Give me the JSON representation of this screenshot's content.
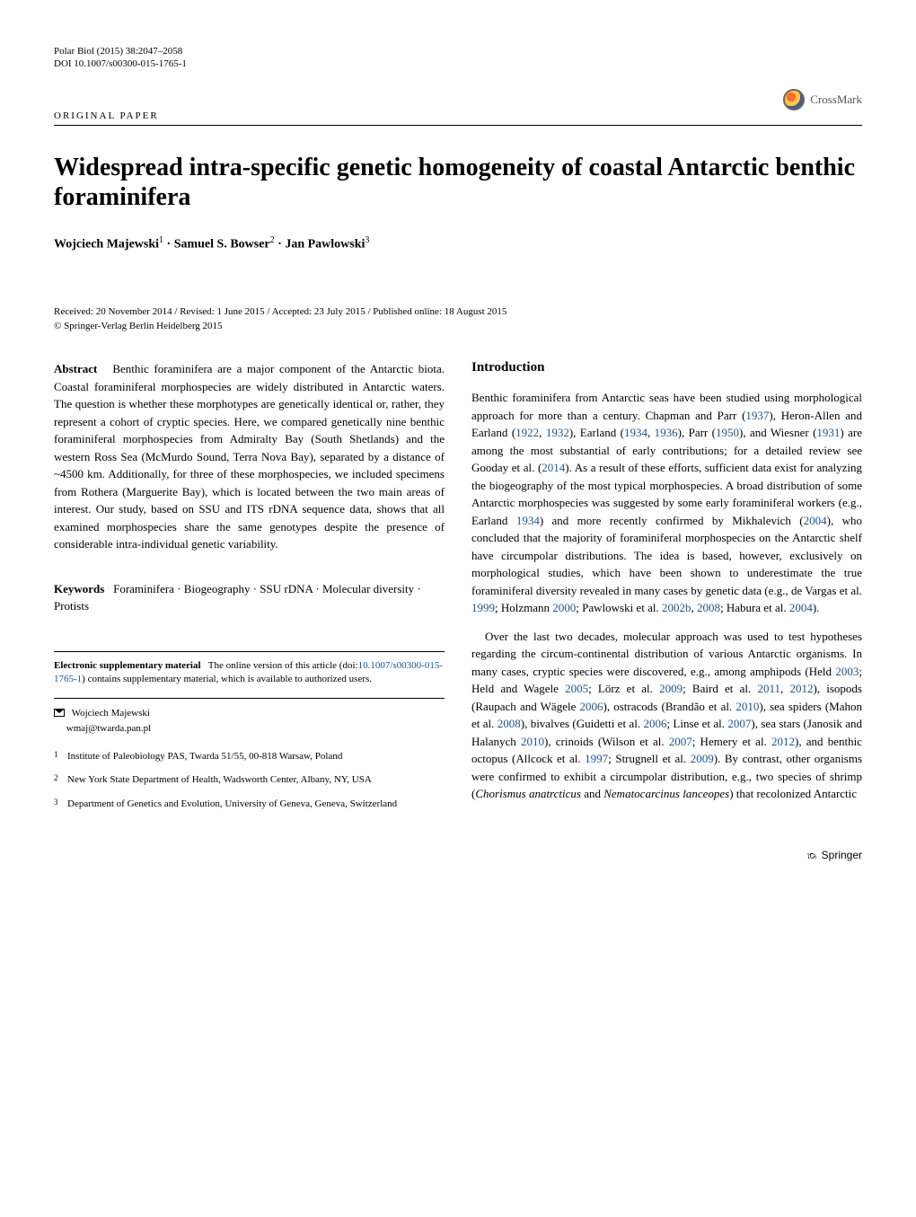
{
  "journal": {
    "name": "Polar Biol (2015) 38:2047–2058",
    "doi": "DOI 10.1007/s00300-015-1765-1"
  },
  "crossmark_label": "CrossMark",
  "paper_type": "ORIGINAL PAPER",
  "title": "Widespread intra-specific genetic homogeneity of coastal Antarctic benthic foraminifera",
  "authors_html": "Wojciech Majewski<sup>1</sup> · Samuel S. Bowser<sup>2</sup> · Jan Pawlowski<sup>3</sup>",
  "dates": {
    "line1": "Received: 20 November 2014 / Revised: 1 June 2015 / Accepted: 23 July 2015 / Published online: 18 August 2015",
    "line2": "© Springer-Verlag Berlin Heidelberg 2015"
  },
  "abstract": {
    "label": "Abstract",
    "text": "Benthic foraminifera are a major component of the Antarctic biota. Coastal foraminiferal morphospecies are widely distributed in Antarctic waters. The question is whether these morphotypes are genetically identical or, rather, they represent a cohort of cryptic species. Here, we compared genetically nine benthic foraminiferal morphospecies from Admiralty Bay (South Shetlands) and the western Ross Sea (McMurdo Sound, Terra Nova Bay), separated by a distance of ~4500 km. Additionally, for three of these morphospecies, we included specimens from Rothera (Marguerite Bay), which is located between the two main areas of interest. Our study, based on SSU and ITS rDNA sequence data, shows that all examined morphospecies share the same genotypes despite the presence of considerable intra-individual genetic variability."
  },
  "keywords": {
    "label": "Keywords",
    "text": "Foraminifera · Biogeography · SSU rDNA · Molecular diversity · Protists"
  },
  "introduction": {
    "heading": "Introduction",
    "p1": "Benthic foraminifera from Antarctic seas have been studied using morphological approach for more than a century. Chapman and Parr (1937), Heron-Allen and Earland (1922, 1932), Earland (1934, 1936), Parr (1950), and Wiesner (1931) are among the most substantial of early contributions; for a detailed review see Gooday et al. (2014). As a result of these efforts, sufficient data exist for analyzing the biogeography of the most typical morphospecies. A broad distribution of some Antarctic morphospecies was suggested by some early foraminiferal workers (e.g., Earland 1934) and more recently confirmed by Mikhalevich (2004), who concluded that the majority of foraminiferal morphospecies on the Antarctic shelf have circumpolar distributions. The idea is based, however, exclusively on morphological studies, which have been shown to underestimate the true foraminiferal diversity revealed in many cases by genetic data (e.g., de Vargas et al. 1999; Holzmann 2000; Pawlowski et al. 2002b, 2008; Habura et al. 2004).",
    "p2": "Over the last two decades, molecular approach was used to test hypotheses regarding the circum-continental distribution of various Antarctic organisms. In many cases, cryptic species were discovered, e.g., among amphipods (Held 2003; Held and Wagele 2005; Lörz et al. 2009; Baird et al. 2011, 2012), isopods (Raupach and Wägele 2006), ostracods (Brandão et al. 2010), sea spiders (Mahon et al. 2008), bivalves (Guidetti et al. 2006; Linse et al. 2007), sea stars (Janosik and Halanych 2010), crinoids (Wilson et al. 2007; Hemery et al. 2012), and benthic octopus (Allcock et al. 1997; Strugnell et al. 2009). By contrast, other organisms were confirmed to exhibit a circumpolar distribution, e.g., two species of shrimp (Chorismus anatrcticus and Nematocarcinus lanceopes) that recolonized Antarctic"
  },
  "supplementary": {
    "label": "Electronic supplementary material",
    "text": "The online version of this article (doi:10.1007/s00300-015-1765-1) contains supplementary material, which is available to authorized users."
  },
  "corresponding": {
    "name": "Wojciech Majewski",
    "email": "wmaj@twarda.pan.pl"
  },
  "affiliations": [
    {
      "num": "1",
      "text": "Institute of Paleobiology PAS, Twarda 51/55, 00-818 Warsaw, Poland"
    },
    {
      "num": "2",
      "text": "New York State Department of Health, Wadsworth Center, Albany, NY, USA"
    },
    {
      "num": "3",
      "text": "Department of Genetics and Evolution, University of Geneva, Geneva, Switzerland"
    }
  ],
  "footer": "Springer"
}
